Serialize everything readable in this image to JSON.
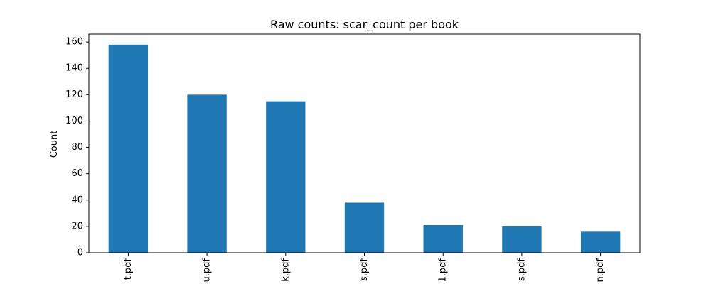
{
  "chart_data": {
    "type": "bar",
    "title": "Raw counts: scar_count per book",
    "xlabel": "",
    "ylabel": "Count",
    "categories": [
      "t.pdf",
      "u.pdf",
      "k.pdf",
      "s.pdf",
      "1.pdf",
      "s.pdf",
      "n.pdf"
    ],
    "values": [
      158,
      120,
      115,
      38,
      21,
      20,
      16
    ],
    "ylim": [
      0,
      166
    ],
    "yticks": [
      0,
      20,
      40,
      60,
      80,
      100,
      120,
      140,
      160
    ],
    "bar_color": "#1f77b4",
    "grid": false,
    "legend": "none"
  }
}
